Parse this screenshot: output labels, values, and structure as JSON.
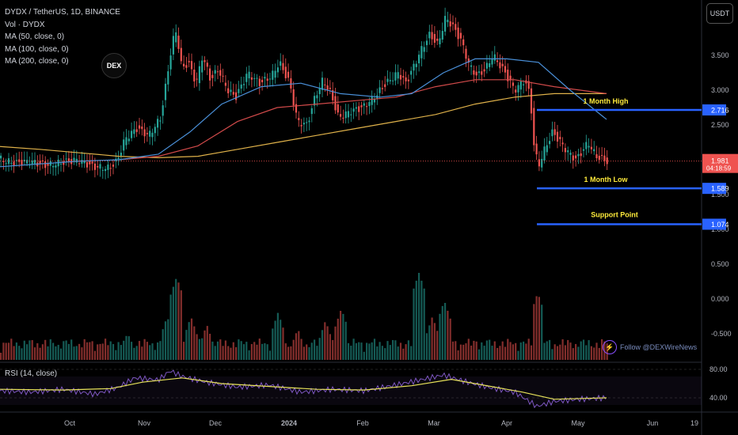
{
  "legend": {
    "symbol": "DYDX / TetherUS, 1D, BINANCE",
    "vol": "Vol · DYDX",
    "ma50": "MA (50, close, 0)",
    "ma100": "MA (100, close, 0)",
    "ma200": "MA (200, close, 0)"
  },
  "currency_button": "USDT",
  "logo_text": "DEX",
  "rsi_label": "RSI (14, close)",
  "follow_text": "Follow @DEXWireNews",
  "colors": {
    "up": "#26a69a",
    "down": "#ef5350",
    "ma50": "#4a90d9",
    "ma100": "#d14a4a",
    "ma200": "#e0b24a",
    "level": "#2962ff",
    "annotation": "#ffeb3b",
    "rsi": "#7e57c2",
    "rsi_ma": "#e8e35a"
  },
  "chart_data": {
    "type": "candlestick",
    "x_ticks": [
      "Oct",
      "Nov",
      "Dec",
      "2024",
      "Feb",
      "Mar",
      "Apr",
      "May",
      "Jun",
      "19"
    ],
    "y_ticks": [
      "3.500",
      "3.000",
      "2.500",
      "2.000",
      "1.500",
      "1.000",
      "0.500",
      "0.000",
      "-0.500"
    ],
    "price_range": [
      -0.8,
      4.0
    ],
    "price_points": [
      [
        0,
        2.02
      ],
      [
        20,
        1.95
      ],
      [
        40,
        1.98
      ],
      [
        60,
        1.92
      ],
      [
        80,
        1.96
      ],
      [
        100,
        2.0
      ],
      [
        120,
        1.9
      ],
      [
        140,
        1.88
      ],
      [
        150,
        1.98
      ],
      [
        160,
        2.3
      ],
      [
        175,
        2.45
      ],
      [
        190,
        2.35
      ],
      [
        205,
        2.6
      ],
      [
        212,
        3.1
      ],
      [
        220,
        3.7
      ],
      [
        225,
        3.85
      ],
      [
        232,
        3.3
      ],
      [
        240,
        3.4
      ],
      [
        250,
        3.1
      ],
      [
        258,
        3.5
      ],
      [
        268,
        3.15
      ],
      [
        278,
        3.3
      ],
      [
        290,
        3.0
      ],
      [
        300,
        2.9
      ],
      [
        315,
        3.25
      ],
      [
        330,
        3.1
      ],
      [
        345,
        3.2
      ],
      [
        355,
        3.4
      ],
      [
        368,
        3.1
      ],
      [
        378,
        2.55
      ],
      [
        390,
        2.5
      ],
      [
        400,
        2.9
      ],
      [
        410,
        3.15
      ],
      [
        420,
        2.95
      ],
      [
        430,
        2.6
      ],
      [
        445,
        2.7
      ],
      [
        460,
        2.75
      ],
      [
        475,
        2.9
      ],
      [
        490,
        3.1
      ],
      [
        505,
        3.25
      ],
      [
        515,
        3.1
      ],
      [
        525,
        3.35
      ],
      [
        535,
        3.6
      ],
      [
        545,
        3.8
      ],
      [
        555,
        3.65
      ],
      [
        565,
        4.05
      ],
      [
        575,
        3.9
      ],
      [
        585,
        3.7
      ],
      [
        595,
        3.35
      ],
      [
        605,
        3.2
      ],
      [
        615,
        3.3
      ],
      [
        625,
        3.5
      ],
      [
        640,
        3.25
      ],
      [
        652,
        3.0
      ],
      [
        665,
        3.15
      ],
      [
        672,
        2.9
      ],
      [
        676,
        2.25
      ],
      [
        682,
        1.9
      ],
      [
        690,
        2.15
      ],
      [
        700,
        2.4
      ],
      [
        710,
        2.25
      ],
      [
        720,
        2.1
      ],
      [
        730,
        2.0
      ],
      [
        745,
        2.25
      ],
      [
        755,
        2.05
      ],
      [
        768,
        1.98
      ]
    ],
    "ma50": [
      [
        0,
        1.9
      ],
      [
        100,
        1.98
      ],
      [
        150,
        2.0
      ],
      [
        200,
        2.08
      ],
      [
        240,
        2.4
      ],
      [
        280,
        2.8
      ],
      [
        330,
        3.05
      ],
      [
        380,
        3.1
      ],
      [
        430,
        2.95
      ],
      [
        480,
        2.9
      ],
      [
        520,
        2.95
      ],
      [
        560,
        3.25
      ],
      [
        600,
        3.45
      ],
      [
        640,
        3.45
      ],
      [
        680,
        3.4
      ],
      [
        720,
        3.0
      ],
      [
        766,
        2.58
      ]
    ],
    "ma100": [
      [
        150,
        2.0
      ],
      [
        200,
        2.05
      ],
      [
        250,
        2.2
      ],
      [
        300,
        2.55
      ],
      [
        350,
        2.75
      ],
      [
        400,
        2.8
      ],
      [
        450,
        2.85
      ],
      [
        500,
        2.9
      ],
      [
        550,
        3.05
      ],
      [
        600,
        3.15
      ],
      [
        650,
        3.15
      ],
      [
        700,
        3.05
      ],
      [
        766,
        2.95
      ]
    ],
    "ma200": [
      [
        0,
        2.19
      ],
      [
        50,
        2.15
      ],
      [
        100,
        2.1
      ],
      [
        150,
        2.05
      ],
      [
        200,
        2.03
      ],
      [
        250,
        2.05
      ],
      [
        300,
        2.15
      ],
      [
        350,
        2.25
      ],
      [
        400,
        2.35
      ],
      [
        450,
        2.45
      ],
      [
        500,
        2.55
      ],
      [
        550,
        2.65
      ],
      [
        600,
        2.8
      ],
      [
        650,
        2.9
      ],
      [
        700,
        2.95
      ],
      [
        766,
        2.95
      ]
    ],
    "volume_spikes": [
      [
        160,
        420
      ],
      [
        210,
        400
      ],
      [
        222,
        350
      ],
      [
        240,
        400
      ],
      [
        260,
        410
      ],
      [
        300,
        430
      ],
      [
        350,
        395
      ],
      [
        375,
        415
      ],
      [
        410,
        405
      ],
      [
        430,
        390
      ],
      [
        455,
        435
      ],
      [
        528,
        345
      ],
      [
        545,
        400
      ],
      [
        560,
        380
      ],
      [
        600,
        430
      ],
      [
        678,
        370
      ]
    ],
    "rsi_ticks": [
      "80.00",
      "40.00"
    ],
    "rsi_range": [
      20,
      90
    ],
    "rsi_points": [
      [
        0,
        50
      ],
      [
        40,
        48
      ],
      [
        80,
        52
      ],
      [
        120,
        45
      ],
      [
        150,
        55
      ],
      [
        170,
        68
      ],
      [
        200,
        65
      ],
      [
        215,
        78
      ],
      [
        230,
        70
      ],
      [
        260,
        62
      ],
      [
        300,
        55
      ],
      [
        340,
        58
      ],
      [
        380,
        48
      ],
      [
        420,
        52
      ],
      [
        460,
        50
      ],
      [
        500,
        58
      ],
      [
        530,
        65
      ],
      [
        560,
        72
      ],
      [
        590,
        62
      ],
      [
        620,
        54
      ],
      [
        650,
        48
      ],
      [
        678,
        28
      ],
      [
        700,
        35
      ],
      [
        730,
        38
      ],
      [
        766,
        40
      ]
    ],
    "rsi_ma_points": [
      [
        0,
        52
      ],
      [
        80,
        51
      ],
      [
        140,
        53
      ],
      [
        180,
        62
      ],
      [
        230,
        68
      ],
      [
        280,
        60
      ],
      [
        340,
        56
      ],
      [
        400,
        52
      ],
      [
        460,
        51
      ],
      [
        520,
        57
      ],
      [
        570,
        66
      ],
      [
        620,
        56
      ],
      [
        660,
        48
      ],
      [
        700,
        38
      ],
      [
        766,
        40
      ]
    ],
    "levels": [
      {
        "label": "1 Month High",
        "value": "2.716",
        "price": 2.716
      },
      {
        "label": "1 Month Low",
        "value": "1.589",
        "price": 1.589
      },
      {
        "label": "Support Point",
        "value": "1.074",
        "price": 1.074
      }
    ],
    "current_price": "1.981",
    "countdown": "04:18:59"
  }
}
